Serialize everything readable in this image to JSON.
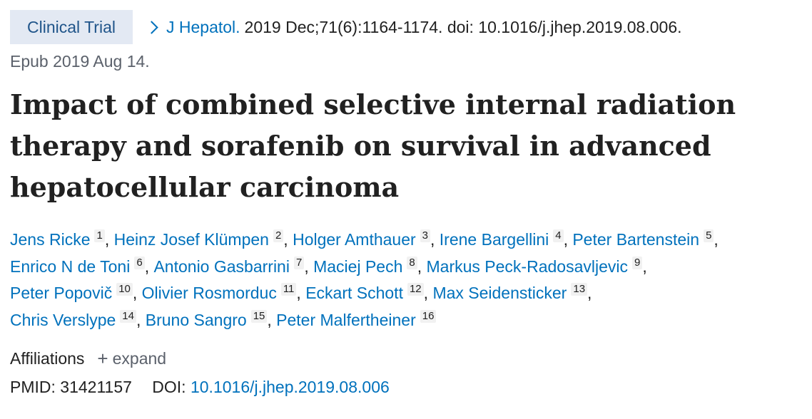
{
  "header": {
    "badge": "Clinical Trial",
    "journal": "J Hepatol.",
    "citation": "2019 Dec;71(6):1164-1174. doi: 10.1016/j.jhep.2019.08.006.",
    "epub": "Epub 2019 Aug 14."
  },
  "article": {
    "title_line1": "Impact of combined selective internal radiation",
    "title_line2": "therapy and sorafenib on survival in advanced",
    "title_line3": "hepatocellular carcinoma"
  },
  "authors": [
    {
      "name": "Jens Ricke",
      "aff": "1"
    },
    {
      "name": "Heinz Josef Klümpen",
      "aff": "2"
    },
    {
      "name": "Holger Amthauer",
      "aff": "3"
    },
    {
      "name": "Irene Bargellini",
      "aff": "4"
    },
    {
      "name": "Peter Bartenstein",
      "aff": "5"
    },
    {
      "name": "Enrico N de Toni",
      "aff": "6"
    },
    {
      "name": "Antonio Gasbarrini",
      "aff": "7"
    },
    {
      "name": "Maciej Pech",
      "aff": "8"
    },
    {
      "name": "Markus Peck-Radosavljevic",
      "aff": "9"
    },
    {
      "name": "Peter Popovič",
      "aff": "10"
    },
    {
      "name": "Olivier Rosmorduc",
      "aff": "11"
    },
    {
      "name": "Eckart Schott",
      "aff": "12"
    },
    {
      "name": "Max Seidensticker",
      "aff": "13"
    },
    {
      "name": "Chris Verslype",
      "aff": "14"
    },
    {
      "name": "Bruno Sangro",
      "aff": "15"
    },
    {
      "name": "Peter Malfertheiner",
      "aff": "16"
    }
  ],
  "affiliations": {
    "label": "Affiliations",
    "plus": "+",
    "expand": "expand"
  },
  "ids": {
    "pmid_label": "PMID:",
    "pmid": "31421157",
    "doi_label": "DOI:",
    "doi": "10.1016/j.jhep.2019.08.006"
  },
  "colors": {
    "link": "#0071bc",
    "badge_bg": "#e3e9f3",
    "badge_text": "#20558a",
    "text": "#212121",
    "muted": "#5b616b"
  },
  "icons": {
    "journal_chevron": "chevron-right-icon",
    "expand": "plus-icon"
  }
}
